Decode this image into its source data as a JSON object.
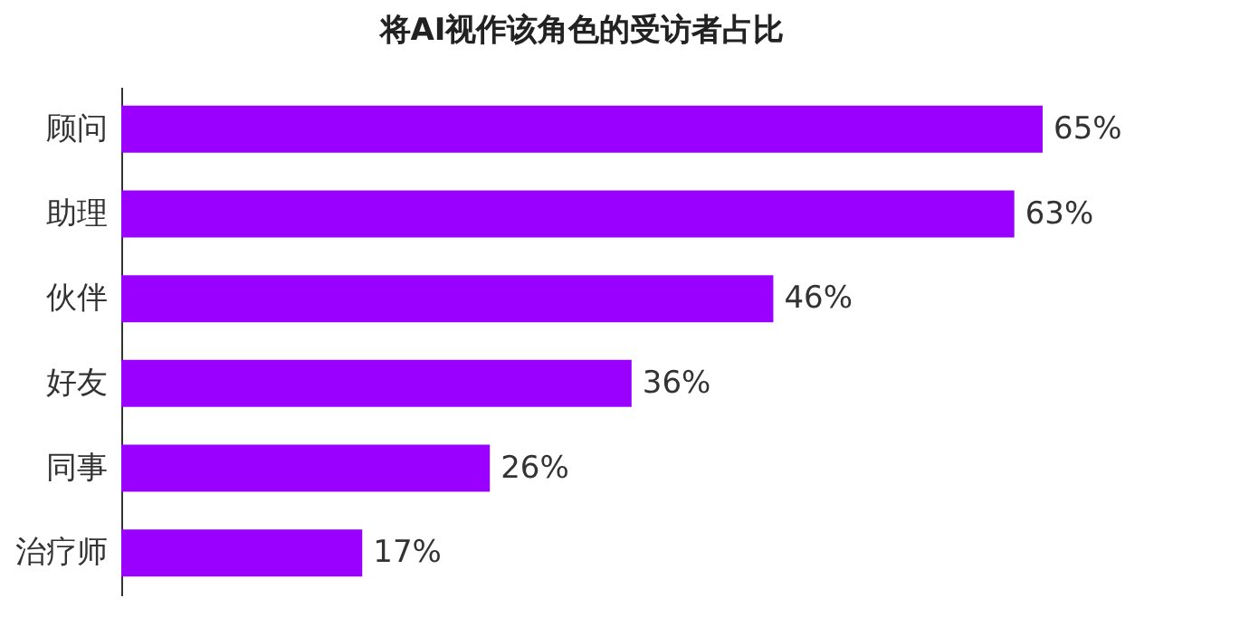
{
  "chart_data": {
    "type": "bar",
    "orientation": "horizontal",
    "title": "将AI视作该角色的受访者占比",
    "categories": [
      "顾问",
      "助理",
      "伙伴",
      "好友",
      "同事",
      "治疗师"
    ],
    "values": [
      65,
      63,
      46,
      36,
      26,
      17
    ],
    "value_labels": [
      "65%",
      "63%",
      "46%",
      "36%",
      "26%",
      "17%"
    ],
    "color": "#9900ff",
    "grid": false,
    "tick_labels": "y"
  }
}
